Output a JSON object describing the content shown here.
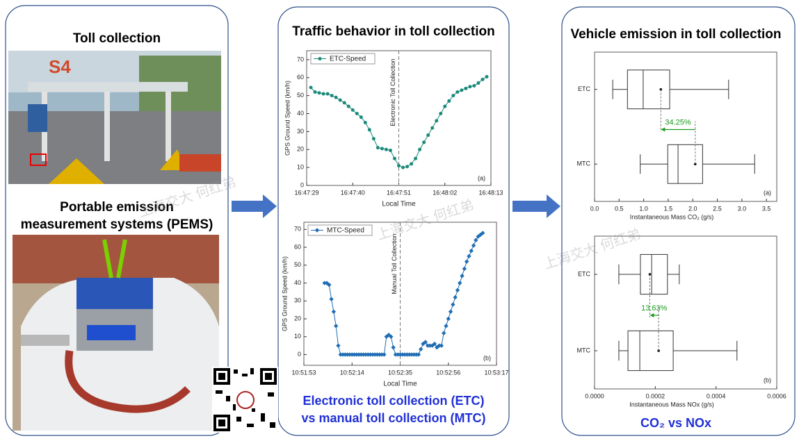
{
  "watermark": "上海交大 何红弟",
  "left": {
    "title": "Toll collection",
    "subtitle_lines": [
      "Portable emission",
      "measurement systems (PEMS)"
    ]
  },
  "middle": {
    "title": "Traffic behavior in toll collection",
    "caption_lines": [
      "Electronic toll collection (ETC)",
      "vs manual toll collection (MTC)"
    ]
  },
  "right": {
    "title": "Vehicle emission in toll collection",
    "caption": "CO₂ vs NOx"
  },
  "chart_data": [
    {
      "type": "line",
      "marker": "circle",
      "panel_label": "(a)",
      "xlabel": "Local Time",
      "ylabel": "GPS Ground Speed (km/h)",
      "annotation": {
        "text": "Electronic Toll Collection",
        "x": "16:47:51"
      },
      "xlim": [
        "16:47:29",
        "16:48:13"
      ],
      "xticks": [
        "16:47:29",
        "16:47:40",
        "16:47:51",
        "16:48:02",
        "16:48:13"
      ],
      "ylim": [
        0,
        75
      ],
      "yticks": [
        0,
        10,
        20,
        30,
        40,
        50,
        60,
        70
      ],
      "x": [
        "16:47:30",
        "16:47:31",
        "16:47:32",
        "16:47:33",
        "16:47:34",
        "16:47:35",
        "16:47:36",
        "16:47:37",
        "16:47:38",
        "16:47:39",
        "16:47:40",
        "16:47:41",
        "16:47:42",
        "16:47:43",
        "16:47:44",
        "16:47:45",
        "16:47:46",
        "16:47:47",
        "16:47:48",
        "16:47:49",
        "16:47:50",
        "16:47:51",
        "16:47:52",
        "16:47:53",
        "16:47:54",
        "16:47:55",
        "16:47:56",
        "16:47:57",
        "16:47:58",
        "16:47:59",
        "16:48:00",
        "16:48:01",
        "16:48:02",
        "16:48:03",
        "16:48:04",
        "16:48:05",
        "16:48:06",
        "16:48:07",
        "16:48:08",
        "16:48:09",
        "16:48:10",
        "16:48:11",
        "16:48:12"
      ],
      "series": [
        {
          "name": "ETC-Speed",
          "color": "#1a8a7a",
          "values": [
            54.5,
            52,
            51.5,
            51,
            51,
            50,
            49,
            47.5,
            46,
            44,
            42,
            40,
            38,
            35,
            31,
            26,
            21,
            20.5,
            20,
            19.5,
            15,
            11,
            10,
            10.5,
            12,
            15,
            20,
            24,
            28,
            32,
            36,
            40,
            44,
            47,
            50,
            52,
            53,
            54,
            55,
            55.5,
            57,
            59,
            60.5
          ]
        }
      ]
    },
    {
      "type": "line",
      "marker": "diamond",
      "panel_label": "(b)",
      "xlabel": "Local Time",
      "ylabel": "GPS Ground Speed (km/h)",
      "annotation": {
        "text": "Manual Toll Collection",
        "x": "10:52:35"
      },
      "xlim": [
        "10:51:53",
        "10:53:17"
      ],
      "xticks": [
        "10:51:53",
        "10:52:14",
        "10:52:35",
        "10:52:56",
        "10:53:17"
      ],
      "ylim": [
        -6,
        74
      ],
      "yticks": [
        0,
        10,
        20,
        30,
        40,
        50,
        60,
        70
      ],
      "x": [
        "10:52:02",
        "10:52:03",
        "10:52:04",
        "10:52:05",
        "10:52:06",
        "10:52:07",
        "10:52:08",
        "10:52:09",
        "10:52:10",
        "10:52:11",
        "10:52:12",
        "10:52:13",
        "10:52:14",
        "10:52:15",
        "10:52:16",
        "10:52:17",
        "10:52:18",
        "10:52:19",
        "10:52:20",
        "10:52:21",
        "10:52:22",
        "10:52:23",
        "10:52:24",
        "10:52:25",
        "10:52:26",
        "10:52:27",
        "10:52:28",
        "10:52:29",
        "10:52:30",
        "10:52:31",
        "10:52:32",
        "10:52:33",
        "10:52:34",
        "10:52:35",
        "10:52:36",
        "10:52:37",
        "10:52:38",
        "10:52:39",
        "10:52:40",
        "10:52:41",
        "10:52:42",
        "10:52:43",
        "10:52:44",
        "10:52:45",
        "10:52:46",
        "10:52:47",
        "10:52:48",
        "10:52:49",
        "10:52:50",
        "10:52:51",
        "10:52:52",
        "10:52:53",
        "10:52:54",
        "10:52:55",
        "10:52:56",
        "10:52:57",
        "10:52:58",
        "10:52:59",
        "10:53:00",
        "10:53:01",
        "10:53:02",
        "10:53:03",
        "10:53:04",
        "10:53:05",
        "10:53:06",
        "10:53:07",
        "10:53:08",
        "10:53:09",
        "10:53:10",
        "10:53:11"
      ],
      "series": [
        {
          "name": "MTC-Speed",
          "color": "#1f6db3",
          "values": [
            40,
            40,
            39,
            31,
            24,
            16,
            5,
            0,
            0,
            0,
            0,
            0,
            0,
            0,
            0,
            0,
            0,
            0,
            0,
            0,
            0,
            0,
            0,
            0,
            0,
            0,
            0,
            10,
            11,
            10,
            4,
            0,
            0,
            0,
            0,
            0,
            0,
            0,
            0,
            0,
            0,
            0,
            3,
            6,
            7,
            5,
            5,
            5,
            6,
            4,
            5,
            5,
            12,
            16,
            20,
            24,
            28,
            32,
            36,
            40,
            44,
            48,
            52,
            55,
            58,
            61,
            64,
            66,
            67,
            68
          ]
        }
      ]
    },
    {
      "type": "box",
      "panel_label": "(a)",
      "xlabel": "Instantaneous Mass CO₂ (g/s)",
      "xlim": [
        0,
        3.71
      ],
      "xticks": [
        {
          "value": 0,
          "label": "0.0"
        },
        0.5,
        {
          "value": 1,
          "label": "1.0"
        },
        1.5,
        {
          "value": 2,
          "label": "2.0"
        },
        2.5,
        {
          "value": 3,
          "label": "3.0"
        },
        3.5
      ],
      "categories": [
        "ETC",
        "MTC"
      ],
      "boxes": [
        {
          "min": 0.37,
          "q1": 0.67,
          "median": 0.99,
          "q3": 1.53,
          "max": 2.73,
          "mean": 1.35
        },
        {
          "min": 0.93,
          "q1": 1.49,
          "median": 1.7,
          "q3": 2.2,
          "max": 3.26,
          "mean": 2.05
        }
      ],
      "annotation": {
        "text": "34.25%",
        "color": "#1a9a1a"
      }
    },
    {
      "type": "box",
      "panel_label": "(b)",
      "xlabel": "Instantaneous Mass NOx (g/s)",
      "xlim": [
        0,
        0.0006
      ],
      "xticks": [
        {
          "value": 0,
          "label": "0.0000"
        },
        0.0002,
        0.0004,
        0.0006
      ],
      "categories": [
        "ETC",
        "MTC"
      ],
      "boxes": [
        {
          "min": 8e-05,
          "q1": 0.000151,
          "median": 0.000188,
          "q3": 0.00024,
          "max": 0.000279,
          "mean": 0.000182
        },
        {
          "min": 8e-05,
          "q1": 0.00011,
          "median": 0.000149,
          "q3": 0.000259,
          "max": 0.000469,
          "mean": 0.000211
        }
      ],
      "annotation": {
        "text": "13.63%",
        "color": "#1a9a1a"
      }
    }
  ]
}
